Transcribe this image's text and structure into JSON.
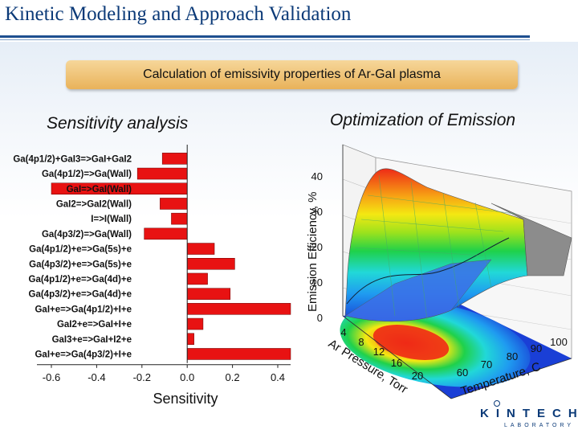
{
  "slide": {
    "title": "Kinetic Modeling and Approach Validation",
    "banner": "Calculation of emissivity properties of Ar-GaI plasma",
    "left_heading": "Sensitivity analysis",
    "right_heading": "Optimization of Emission"
  },
  "logo": {
    "main": "KINTECH",
    "sub": "LABORATORY"
  },
  "chart_data": [
    {
      "type": "bar",
      "orientation": "horizontal",
      "title": "Sensitivity analysis",
      "xlabel": "Sensitivity",
      "ylabel": "",
      "xlim": [
        -0.6,
        0.45
      ],
      "xticks": [
        "-0.6",
        "-0.4",
        "-0.2",
        "0.0",
        "0.2",
        "0.4"
      ],
      "categories": [
        "Ga(4p1/2)+GaI3=>GaI+GaI2",
        "Ga(4p1/2)=>Ga(Wall)",
        "GaI=>GaI(Wall)",
        "GaI2=>GaI2(Wall)",
        "I=>I(Wall)",
        "Ga(4p3/2)=>Ga(Wall)",
        "Ga(4p1/2)+e=>Ga(5s)+e",
        "Ga(4p3/2)+e=>Ga(5s)+e",
        "Ga(4p1/2)+e=>Ga(4d)+e",
        "Ga(4p3/2)+e=>Ga(4d)+e",
        "GaI+e=>Ga(4p1/2)+I+e",
        "GaI2+e=>GaI+I+e",
        "GaI3+e=>GaI+I2+e",
        "GaI+e=>Ga(4p3/2)+I+e"
      ],
      "values": [
        -0.11,
        -0.22,
        -0.6,
        -0.12,
        -0.07,
        -0.19,
        0.12,
        0.21,
        0.09,
        0.19,
        0.46,
        0.07,
        0.03,
        0.46
      ],
      "bar_color": "#e81212",
      "grid": false
    },
    {
      "type": "surface3d",
      "title": "Optimization of Emission",
      "zlabel": "Emission Efficiency, %",
      "xlabel": "Ar Pressure, Torr",
      "ylabel": "Temperature, C",
      "zticks": [
        "0",
        "10",
        "20",
        "30",
        "40"
      ],
      "xticks": [
        "4",
        "8",
        "12",
        "16",
        "20"
      ],
      "yticks": [
        "60",
        "70",
        "80",
        "90",
        "100"
      ],
      "colormap": [
        "#1a3fd6",
        "#1f9bf0",
        "#21d8d8",
        "#1fd14a",
        "#9be21d",
        "#f4e812",
        "#f7a214",
        "#ee2a16"
      ]
    }
  ]
}
